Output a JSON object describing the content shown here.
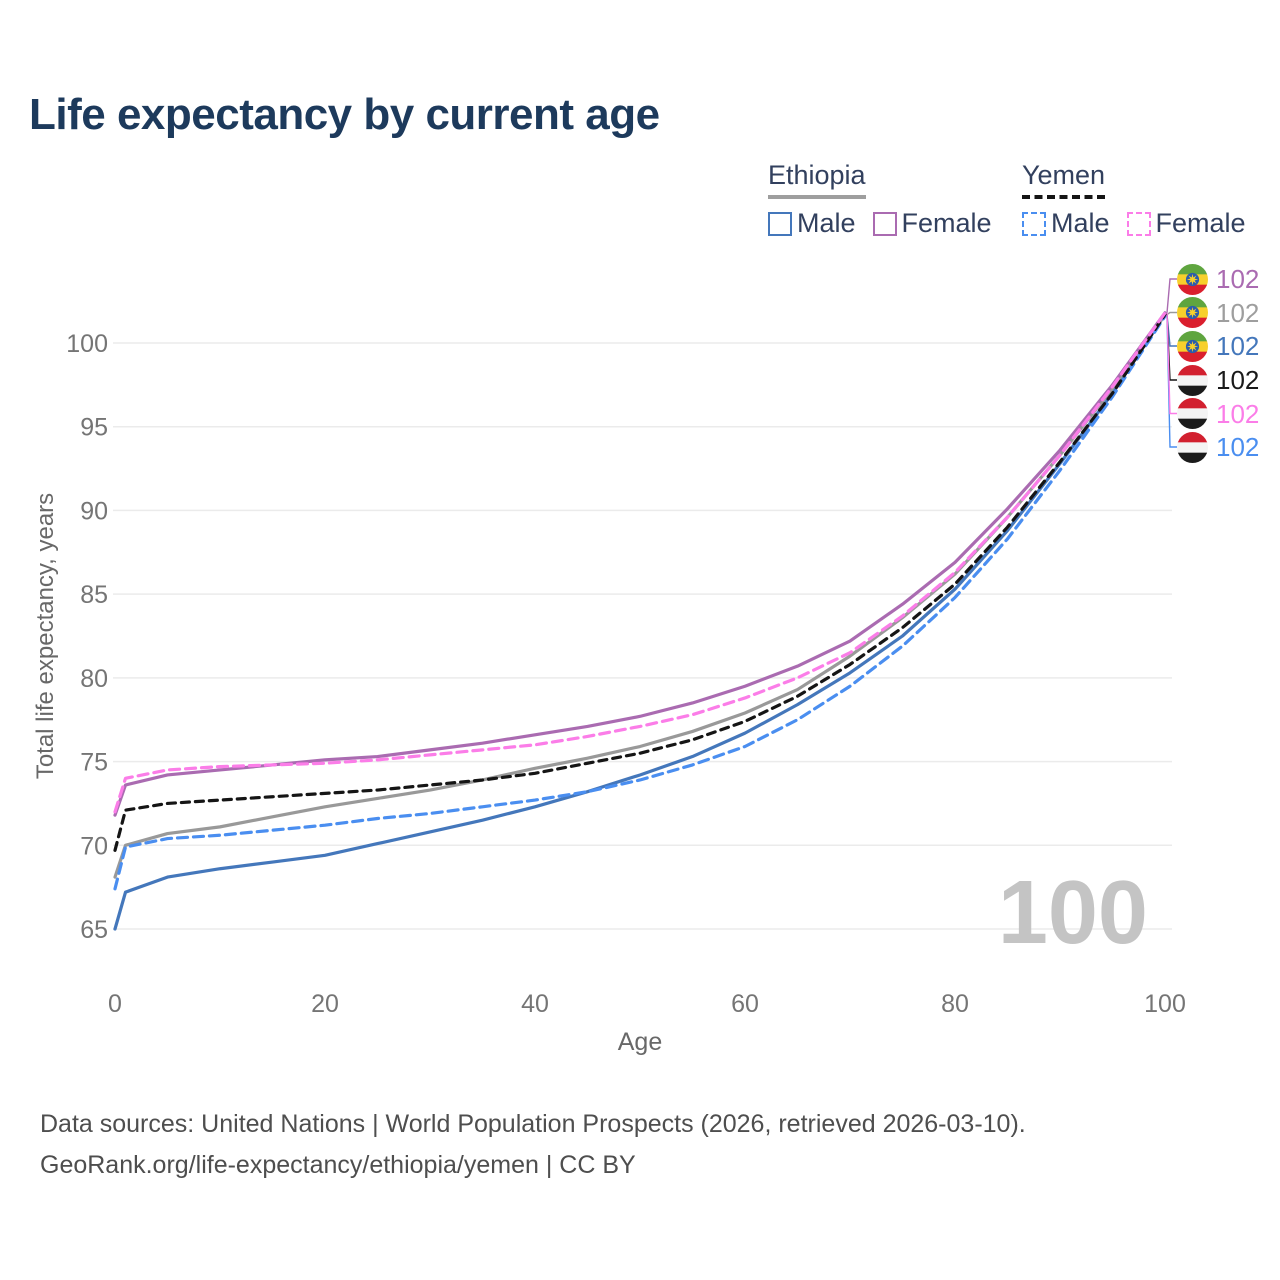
{
  "title": "Life expectancy by current age",
  "legend": {
    "groups": [
      {
        "country": "Ethiopia",
        "underline_color": "#9e9e9e",
        "underline_style": "solid",
        "items": [
          {
            "label": "Male",
            "color": "#4477bb",
            "style": "solid"
          },
          {
            "label": "Female",
            "color": "#aa6bb1",
            "style": "solid"
          }
        ]
      },
      {
        "country": "Yemen",
        "underline_color": "#151515",
        "underline_style": "dashed",
        "items": [
          {
            "label": "Male",
            "color": "#4a8ef0",
            "style": "dashed"
          },
          {
            "label": "Female",
            "color": "#fb7de8",
            "style": "dashed"
          }
        ]
      }
    ]
  },
  "chart_data": {
    "type": "line",
    "xlabel": "Age",
    "ylabel": "Total life expectancy, years",
    "xlim": [
      0,
      100
    ],
    "ylim": [
      65,
      102
    ],
    "xticks": [
      0,
      20,
      40,
      60,
      80,
      100
    ],
    "yticks": [
      65,
      70,
      75,
      80,
      85,
      90,
      95,
      100
    ],
    "grid": true,
    "grid_color": "#ebebeb",
    "x": [
      0,
      1,
      5,
      10,
      15,
      20,
      25,
      30,
      35,
      40,
      45,
      50,
      55,
      60,
      65,
      70,
      75,
      80,
      85,
      90,
      95,
      100
    ],
    "series": [
      {
        "name": "Ethiopia Male",
        "country": "Ethiopia",
        "sex": "Male",
        "color": "#4477bb",
        "line_style": "solid",
        "dash": null,
        "flag": "ethiopia",
        "end_label": "102",
        "label_row": 2,
        "label_color": "#4477bb",
        "values": [
          65.0,
          67.2,
          68.1,
          68.6,
          69.0,
          69.4,
          70.1,
          70.8,
          71.5,
          72.3,
          73.2,
          74.2,
          75.3,
          76.7,
          78.4,
          80.3,
          82.5,
          85.3,
          88.8,
          92.8,
          97.0,
          101.7
        ]
      },
      {
        "name": "Ethiopia Both sexes",
        "country": "Ethiopia",
        "sex": "Both",
        "color": "#999999",
        "line_style": "solid",
        "dash": null,
        "flag": "ethiopia",
        "end_label": "102",
        "label_row": 1,
        "label_color": "#9e9e9e",
        "values": [
          68.1,
          70.0,
          70.7,
          71.1,
          71.7,
          72.3,
          72.8,
          73.3,
          73.9,
          74.6,
          75.2,
          75.9,
          76.8,
          77.9,
          79.3,
          81.3,
          83.6,
          86.2,
          89.6,
          93.3,
          97.3,
          101.7
        ]
      },
      {
        "name": "Ethiopia Female",
        "country": "Ethiopia",
        "sex": "Female",
        "color": "#aa6bb1",
        "line_style": "solid",
        "dash": null,
        "flag": "ethiopia",
        "end_label": "102",
        "label_row": 0,
        "label_color": "#aa6bb1",
        "values": [
          71.8,
          73.6,
          74.2,
          74.5,
          74.8,
          75.1,
          75.3,
          75.7,
          76.1,
          76.6,
          77.1,
          77.7,
          78.5,
          79.5,
          80.7,
          82.2,
          84.4,
          86.9,
          90.1,
          93.6,
          97.5,
          101.8
        ]
      },
      {
        "name": "Yemen Male",
        "country": "Yemen",
        "sex": "Male",
        "color": "#4a8ef0",
        "line_style": "dashed",
        "dash": "10,6",
        "flag": "yemen",
        "end_label": "102",
        "label_row": 5,
        "label_color": "#4a8ef0",
        "values": [
          67.4,
          69.9,
          70.4,
          70.6,
          70.9,
          71.2,
          71.6,
          71.9,
          72.3,
          72.7,
          73.2,
          73.9,
          74.8,
          75.9,
          77.5,
          79.5,
          81.9,
          84.8,
          88.3,
          92.4,
          96.8,
          101.6
        ]
      },
      {
        "name": "Yemen Both sexes",
        "country": "Yemen",
        "sex": "Both",
        "color": "#151515",
        "line_style": "dashed",
        "dash": "8,6",
        "flag": "yemen",
        "end_label": "102",
        "label_row": 3,
        "label_color": "#1a1a1a",
        "values": [
          69.7,
          72.1,
          72.5,
          72.7,
          72.9,
          73.1,
          73.3,
          73.6,
          73.9,
          74.3,
          74.9,
          75.5,
          76.3,
          77.4,
          78.9,
          80.8,
          83.0,
          85.6,
          89.0,
          92.9,
          97.0,
          101.7
        ]
      },
      {
        "name": "Yemen Female",
        "country": "Yemen",
        "sex": "Female",
        "color": "#fb7de8",
        "line_style": "dashed",
        "dash": "10,6",
        "flag": "yemen",
        "end_label": "102",
        "label_row": 4,
        "label_color": "#fb7de8",
        "values": [
          72.0,
          74.0,
          74.5,
          74.7,
          74.8,
          74.9,
          75.1,
          75.4,
          75.7,
          76.0,
          76.5,
          77.1,
          77.8,
          78.8,
          80.0,
          81.5,
          83.7,
          86.3,
          89.6,
          93.3,
          97.4,
          101.8
        ]
      }
    ]
  },
  "flags": {
    "ethiopia": {
      "stripes": [
        "#5fa53f",
        "#f7d02c",
        "#da1f2d"
      ],
      "emblem_bg": "#2b5cad",
      "emblem_star": "#f7d02c"
    },
    "yemen": {
      "stripes": [
        "#d2202f",
        "#f4f4f4",
        "#1b1b1b"
      ]
    }
  },
  "watermark": {
    "text": "100"
  },
  "sources": {
    "line1": "Data sources: United Nations | World Population Prospects (2026, retrieved 2026-03-10).",
    "line2": "GeoRank.org/life-expectancy/ethiopia/yemen | CC BY"
  }
}
